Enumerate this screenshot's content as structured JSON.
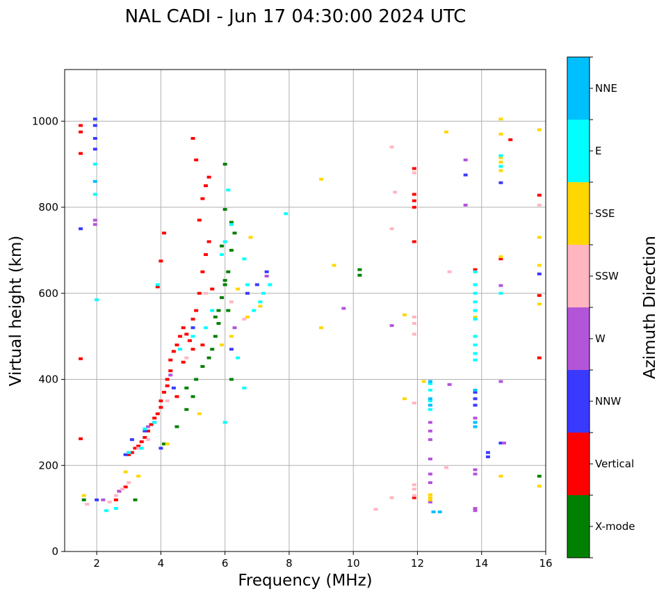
{
  "chart_data": {
    "type": "scatter",
    "title": "NAL CADI - Jun 17 04:30:00 2024 UTC",
    "xlabel": "Frequency (MHz)",
    "ylabel": "Virtual height (km)",
    "xlim": [
      1,
      16
    ],
    "ylim": [
      0,
      1120
    ],
    "xticks": [
      2,
      4,
      6,
      8,
      10,
      12,
      14,
      16
    ],
    "yticks": [
      0,
      200,
      400,
      600,
      800,
      1000
    ],
    "grid": true,
    "colorbar": {
      "label": "Azimuth Direction",
      "categories": [
        {
          "name": "X-mode",
          "color": "#008000"
        },
        {
          "name": "Vertical",
          "color": "#ff0000"
        },
        {
          "name": "NNW",
          "color": "#3a3aff"
        },
        {
          "name": "W",
          "color": "#b355d8"
        },
        {
          "name": "SSW",
          "color": "#ffb6c1"
        },
        {
          "name": "SSE",
          "color": "#ffd700"
        },
        {
          "name": "E",
          "color": "#00ffff"
        },
        {
          "name": "NNE",
          "color": "#00bfff"
        }
      ]
    },
    "series": [
      {
        "name": "Vertical",
        "color": "#ff0000",
        "x": [
          1.5,
          1.5,
          1.5,
          1.5,
          1.5,
          2.6,
          2.7,
          2.9,
          3.0,
          3.1,
          3.2,
          3.3,
          3.4,
          3.5,
          3.6,
          3.7,
          3.8,
          3.9,
          4.0,
          4.0,
          4.1,
          4.2,
          4.2,
          4.3,
          4.3,
          4.4,
          4.5,
          4.6,
          4.7,
          4.8,
          4.9,
          5.0,
          5.0,
          5.1,
          5.2,
          5.3,
          5.4,
          5.5,
          5.2,
          5.3,
          5.4,
          5.5,
          5.1,
          5.0,
          4.1,
          4.0,
          3.9,
          4.5,
          4.7,
          5.3,
          5.6,
          11.9,
          11.9,
          11.9,
          11.9,
          11.9,
          14.6,
          14.9,
          15.8,
          15.8,
          15.8,
          13.8,
          11.9
        ],
        "y": [
          990,
          975,
          925,
          448,
          262,
          120,
          140,
          150,
          225,
          230,
          240,
          245,
          255,
          265,
          280,
          295,
          310,
          320,
          335,
          350,
          370,
          385,
          400,
          420,
          445,
          465,
          480,
          500,
          520,
          505,
          490,
          470,
          540,
          560,
          600,
          650,
          690,
          720,
          770,
          820,
          850,
          870,
          910,
          960,
          740,
          675,
          615,
          360,
          440,
          480,
          610,
          890,
          830,
          815,
          800,
          720,
          680,
          957,
          828,
          595,
          450,
          655,
          125
        ]
      },
      {
        "name": "X-mode",
        "color": "#008000",
        "x": [
          1.6,
          3.2,
          4.1,
          4.5,
          4.8,
          5.1,
          5.3,
          5.5,
          5.6,
          5.7,
          5.8,
          5.9,
          6.0,
          6.1,
          6.2,
          6.3,
          6.2,
          6.0,
          5.9,
          6.0,
          6.2,
          6.1,
          5.8,
          5.7,
          10.2,
          10.2,
          15.8,
          4.8,
          5.0,
          6.0
        ],
        "y": [
          120,
          120,
          250,
          290,
          380,
          400,
          430,
          450,
          470,
          500,
          560,
          590,
          620,
          650,
          700,
          740,
          765,
          795,
          710,
          900,
          400,
          560,
          530,
          545,
          655,
          642,
          175,
          330,
          360,
          630
        ]
      },
      {
        "name": "NNW",
        "color": "#3a3aff",
        "x": [
          1.5,
          1.95,
          1.95,
          1.95,
          1.95,
          2.0,
          2.9,
          3.1,
          3.5,
          3.8,
          4.0,
          4.4,
          5.0,
          6.2,
          6.7,
          7.0,
          7.3,
          13.8,
          13.8,
          13.8,
          13.5,
          14.2,
          14.2,
          14.6,
          15.8,
          14.6
        ],
        "y": [
          750,
          1005,
          990,
          960,
          935,
          120,
          225,
          260,
          280,
          300,
          240,
          380,
          520,
          470,
          600,
          620,
          650,
          370,
          355,
          340,
          875,
          230,
          220,
          857,
          645,
          252
        ]
      },
      {
        "name": "W",
        "color": "#b355d8",
        "x": [
          1.95,
          1.95,
          2.2,
          2.7,
          3.0,
          3.6,
          4.3,
          6.3,
          7.3,
          9.7,
          11.2,
          12.4,
          12.4,
          12.4,
          12.4,
          12.4,
          12.4,
          12.4,
          13.0,
          13.5,
          13.8,
          13.8,
          13.8,
          13.5,
          14.6,
          14.6,
          14.7,
          13.8,
          13.8
        ],
        "y": [
          770,
          760,
          120,
          140,
          230,
          290,
          410,
          520,
          640,
          565,
          525,
          300,
          280,
          260,
          215,
          180,
          160,
          115,
          388,
          805,
          310,
          190,
          180,
          910,
          618,
          395,
          252,
          95,
          100
        ]
      },
      {
        "name": "SSW",
        "color": "#ffb6c1",
        "x": [
          1.7,
          2.4,
          2.6,
          2.8,
          3.0,
          3.3,
          3.6,
          4.2,
          4.8,
          5.4,
          6.2,
          6.6,
          11.2,
          11.2,
          11.3,
          11.9,
          11.9,
          11.9,
          11.9,
          11.9,
          11.9,
          11.9,
          12.9,
          13.0,
          15.8,
          10.7,
          11.2,
          11.9
        ],
        "y": [
          110,
          115,
          130,
          145,
          160,
          240,
          260,
          350,
          450,
          600,
          580,
          540,
          940,
          750,
          835,
          880,
          545,
          530,
          505,
          345,
          155,
          130,
          195,
          650,
          805,
          98,
          125,
          145
        ]
      },
      {
        "name": "SSE",
        "color": "#ffd700",
        "x": [
          1.6,
          2.9,
          3.3,
          4.2,
          5.2,
          5.9,
          6.2,
          6.4,
          6.7,
          6.8,
          7.1,
          9.0,
          9.0,
          9.4,
          11.6,
          11.6,
          12.4,
          12.4,
          12.4,
          12.9,
          14.6,
          14.6,
          14.6,
          14.6,
          14.6,
          14.6,
          15.8,
          15.8,
          15.8,
          15.8,
          15.8,
          13.8,
          13.8,
          14.6,
          12.2
        ],
        "y": [
          130,
          185,
          175,
          250,
          320,
          480,
          500,
          610,
          545,
          730,
          570,
          865,
          520,
          665,
          550,
          355,
          132,
          125,
          120,
          975,
          1005,
          970,
          915,
          885,
          685,
          175,
          980,
          730,
          665,
          575,
          152,
          650,
          545,
          905,
          395
        ]
      },
      {
        "name": "E",
        "color": "#00ffff",
        "x": [
          1.95,
          1.95,
          2.0,
          2.6,
          3.0,
          3.5,
          3.8,
          3.9,
          4.6,
          5.0,
          5.4,
          5.6,
          5.9,
          6.0,
          6.1,
          6.2,
          6.4,
          6.6,
          6.7,
          6.9,
          7.1,
          7.2,
          7.4,
          7.9,
          12.4,
          12.4,
          12.4,
          12.4,
          13.8,
          13.8,
          13.8,
          13.8,
          13.8,
          13.8,
          13.8,
          13.8,
          13.8,
          13.8,
          14.6,
          14.6,
          14.6,
          6.0,
          6.6,
          2.3,
          3.4
        ],
        "y": [
          900,
          830,
          585,
          100,
          230,
          285,
          300,
          620,
          470,
          500,
          520,
          560,
          690,
          720,
          840,
          760,
          450,
          680,
          620,
          560,
          580,
          600,
          620,
          785,
          390,
          375,
          350,
          330,
          650,
          620,
          600,
          580,
          560,
          540,
          500,
          480,
          460,
          445,
          600,
          895,
          920,
          300,
          380,
          95,
          240
        ]
      },
      {
        "name": "NNE",
        "color": "#00bfff",
        "x": [
          12.4,
          12.4,
          12.4,
          12.5,
          12.7,
          13.8,
          13.8,
          13.8,
          1.95
        ],
        "y": [
          395,
          355,
          340,
          92,
          92,
          375,
          300,
          290,
          860
        ]
      }
    ]
  }
}
